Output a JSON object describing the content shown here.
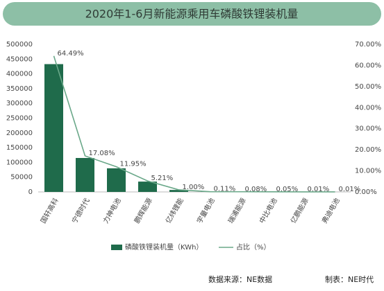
{
  "chart_data": {
    "type": "bar_line",
    "title": "2020年1-6月新能源乘用车磷酸铁锂装机量",
    "categories": [
      "国轩高科",
      "宁德时代",
      "力神电池",
      "鹏辉能源",
      "亿纬锂能",
      "宇量电池",
      "瑞浦能源",
      "中比电池",
      "亿鹏能源",
      "弗迪电池"
    ],
    "series": [
      {
        "name": "磷酸铁锂装机量（KWh）",
        "color": "#1f6b4b",
        "values": [
          433000,
          115000,
          80000,
          35000,
          6700,
          740,
          540,
          340,
          70,
          70
        ]
      },
      {
        "name": "占比（%）",
        "color": "#6aa889",
        "axis": "y2",
        "values": [
          64.49,
          17.08,
          11.95,
          5.21,
          1.0,
          0.11,
          0.08,
          0.05,
          0.01,
          0.01
        ],
        "value_labels": [
          "64.49%",
          "17.08%",
          "11.95%",
          "5.21%",
          "1.00%",
          "0.11%",
          "0.08%",
          "0.05%",
          "0.01%",
          "0.01%"
        ]
      }
    ],
    "ylim": [
      0,
      500000
    ],
    "yticks": [
      0,
      50000,
      100000,
      150000,
      200000,
      250000,
      300000,
      350000,
      400000,
      450000,
      500000
    ],
    "y2lim": [
      0,
      70
    ],
    "y2ticks": [
      {
        "value": 0,
        "label": "0.00%"
      },
      {
        "value": 10,
        "label": "10.00%"
      },
      {
        "value": 20,
        "label": "20.00%"
      },
      {
        "value": 30,
        "label": "30.00%"
      },
      {
        "value": 40,
        "label": "40.00%"
      },
      {
        "value": 50,
        "label": "50.00%"
      },
      {
        "value": 60,
        "label": "60.00%"
      },
      {
        "value": 70,
        "label": "70.00%"
      }
    ],
    "source": "数据来源：NE数据",
    "credit": "制表：NE时代"
  }
}
